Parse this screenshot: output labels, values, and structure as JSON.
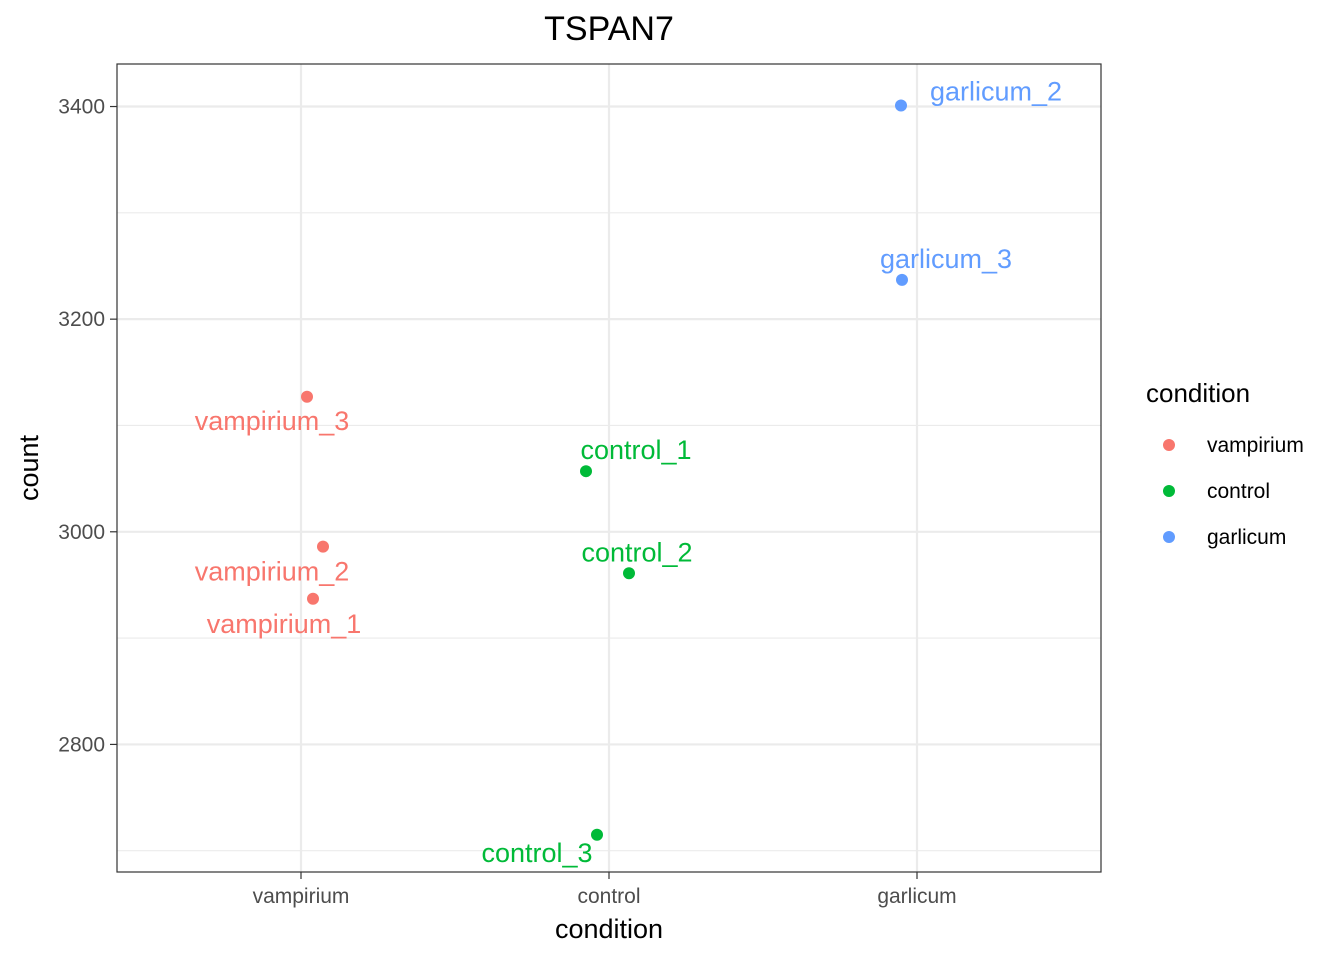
{
  "chart_data": {
    "type": "scatter",
    "title": "TSPAN7",
    "xlabel": "condition",
    "ylabel": "count",
    "categories": [
      "vampirium",
      "control",
      "garlicum"
    ],
    "ylim": [
      2680,
      3440
    ],
    "y_ticks": [
      2800,
      3000,
      3200,
      3400
    ],
    "grid": true,
    "legend": {
      "title": "condition",
      "placement": "right",
      "entries": [
        {
          "label": "vampirium",
          "color": "#F8766D"
        },
        {
          "label": "control",
          "color": "#00BA38"
        },
        {
          "label": "garlicum",
          "color": "#619CFF"
        }
      ]
    },
    "points": [
      {
        "label": "vampirium_1",
        "category": "vampirium",
        "y": 2937,
        "color": "#F8766D"
      },
      {
        "label": "vampirium_2",
        "category": "vampirium",
        "y": 2986,
        "color": "#F8766D"
      },
      {
        "label": "vampirium_3",
        "category": "vampirium",
        "y": 3127,
        "color": "#F8766D"
      },
      {
        "label": "control_1",
        "category": "control",
        "y": 3057,
        "color": "#00BA38"
      },
      {
        "label": "control_2",
        "category": "control",
        "y": 2961,
        "color": "#00BA38"
      },
      {
        "label": "control_3",
        "category": "control",
        "y": 2715,
        "color": "#00BA38"
      },
      {
        "label": "garlicum_2",
        "category": "garlicum",
        "y": 3401,
        "color": "#619CFF"
      },
      {
        "label": "garlicum_3",
        "category": "garlicum",
        "y": 3237,
        "color": "#619CFF"
      }
    ]
  }
}
